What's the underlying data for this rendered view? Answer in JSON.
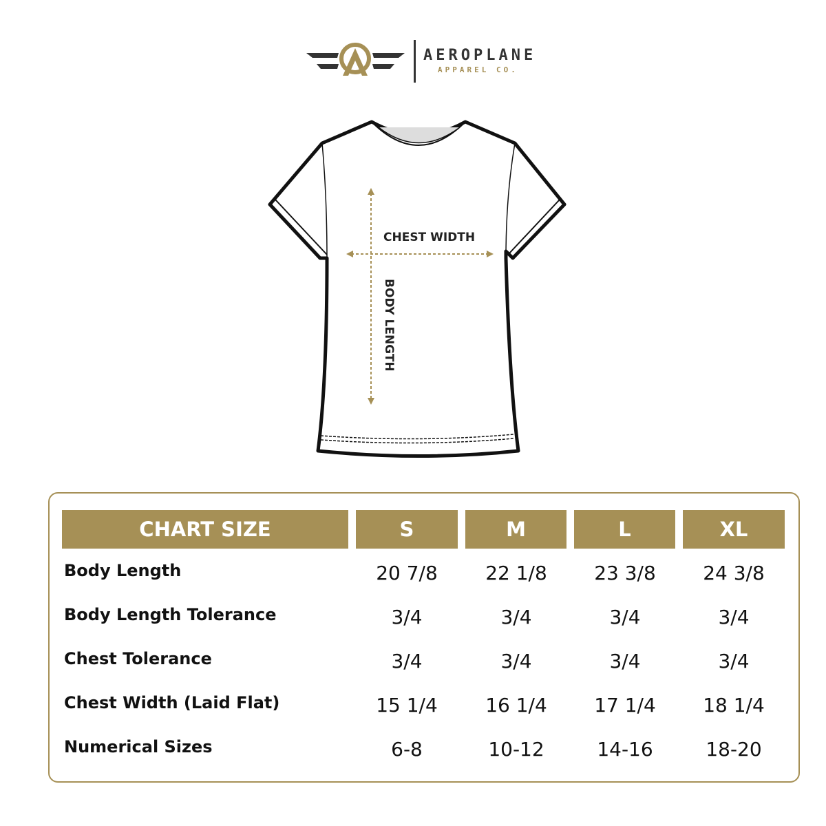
{
  "brand": {
    "name": "AEROPLANE",
    "tagline": "APPAREL CO.",
    "gold": "#a69056",
    "dark": "#333333"
  },
  "diagram": {
    "chest_label": "CHEST WIDTH",
    "length_label": "BODY LENGTH"
  },
  "table": {
    "header": "CHART SIZE",
    "sizes": [
      "S",
      "M",
      "L",
      "XL"
    ],
    "rows": [
      {
        "label": "Body Length",
        "values": [
          "20 7/8",
          "22 1/8",
          "23 3/8",
          "24 3/8"
        ]
      },
      {
        "label": "Body Length Tolerance",
        "values": [
          "3/4",
          "3/4",
          "3/4",
          "3/4"
        ]
      },
      {
        "label": "Chest Tolerance",
        "values": [
          "3/4",
          "3/4",
          "3/4",
          "3/4"
        ]
      },
      {
        "label": "Chest Width (Laid Flat)",
        "values": [
          "15 1/4",
          "16 1/4",
          "17 1/4",
          "18 1/4"
        ]
      },
      {
        "label": "Numerical Sizes",
        "values": [
          "6-8",
          "10-12",
          "14-16",
          "18-20"
        ]
      }
    ]
  }
}
